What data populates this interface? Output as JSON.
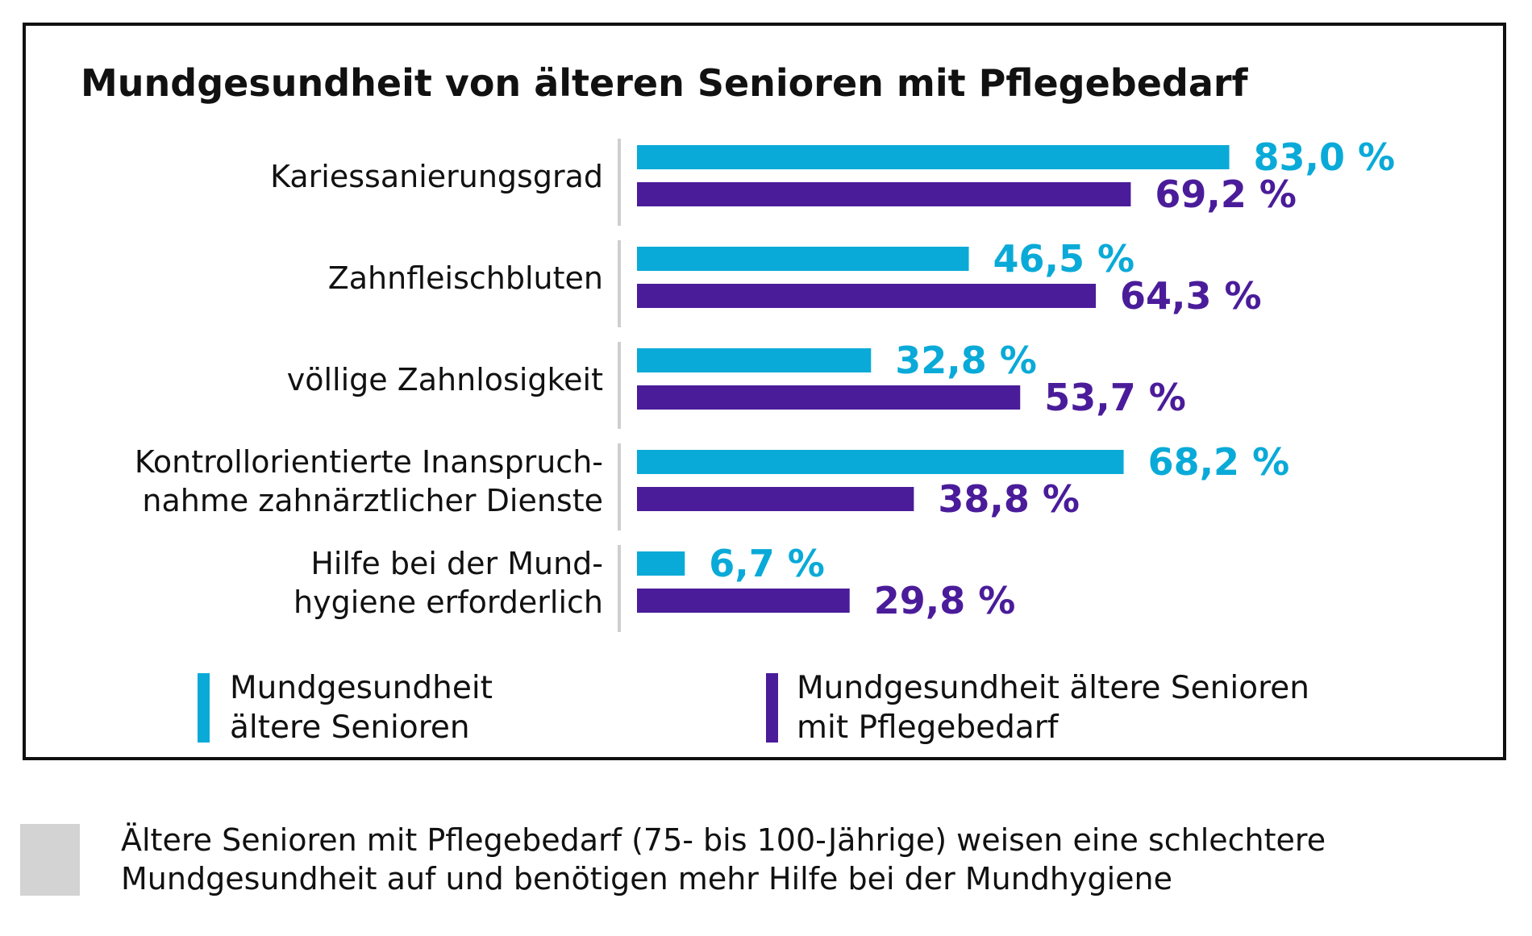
{
  "chart_data": {
    "type": "bar",
    "orientation": "horizontal",
    "title": "Mundgesundheit von älteren Senioren mit Pflegebedarf",
    "categories": [
      [
        "Kariessanierungsgrad"
      ],
      [
        "Zahnfleischbluten"
      ],
      [
        "völlige Zahnlosigkeit"
      ],
      [
        "Kontrollorientierte Inanspruch-",
        "nahme zahnärztlicher Dienste"
      ],
      [
        "Hilfe bei der Mund-",
        "hygiene erforderlich"
      ]
    ],
    "series": [
      {
        "name": "Mundgesundheit ältere Senioren",
        "legend_lines": [
          "Mundgesundheit",
          "ältere Senioren"
        ],
        "color": "#0aaad8",
        "values": [
          83.0,
          46.5,
          32.8,
          68.2,
          6.7
        ],
        "labels": [
          "83,0 %",
          "46,5 %",
          "32,8 %",
          "68,2 %",
          "6,7 %"
        ]
      },
      {
        "name": "Mundgesundheit ältere Senioren mit Pflegebedarf",
        "legend_lines": [
          "Mundgesundheit ältere Senioren",
          "mit Pflegebedarf"
        ],
        "color": "#4a1c9a",
        "values": [
          69.2,
          64.3,
          53.7,
          38.8,
          29.8
        ],
        "labels": [
          "69,2 %",
          "64,3 %",
          "53,7 %",
          "38,8 %",
          "29,8 %"
        ]
      }
    ],
    "xlim": [
      0,
      100
    ],
    "grid": false,
    "legend": "bottom"
  },
  "caption": {
    "lines": [
      "Ältere Senioren mit Pflegebedarf (75- bis 100-Jährige) weisen eine schlechtere",
      "Mundgesundheit auf und benötigen mehr Hilfe bei der Mundhygiene"
    ]
  }
}
